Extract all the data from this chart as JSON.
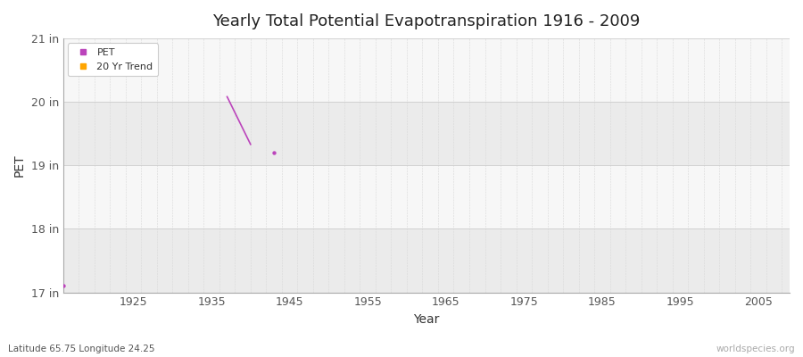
{
  "title": "Yearly Total Potential Evapotranspiration 1916 - 2009",
  "xlabel": "Year",
  "ylabel": "PET",
  "subtitle_lat_lon": "Latitude 65.75 Longitude 24.25",
  "watermark": "worldspecies.org",
  "xlim": [
    1916,
    2009
  ],
  "ylim": [
    17,
    21
  ],
  "yticks": [
    17,
    18,
    19,
    20,
    21
  ],
  "ytick_labels": [
    "17 in",
    "18 in",
    "19 in",
    "20 in",
    "21 in"
  ],
  "xticks": [
    1925,
    1935,
    1945,
    1955,
    1965,
    1975,
    1985,
    1995,
    2005
  ],
  "pet_scatter_x": [
    1916,
    1943
  ],
  "pet_scatter_y": [
    17.1,
    19.2
  ],
  "pet_line_x": [
    1937,
    1940
  ],
  "pet_line_y": [
    20.08,
    19.33
  ],
  "pet_color": "#bb44bb",
  "trend_color": "#ffa500",
  "legend_labels": [
    "PET",
    "20 Yr Trend"
  ],
  "bg_bands": [
    {
      "ymin": 17,
      "ymax": 18,
      "color": "#ebebeb"
    },
    {
      "ymin": 18,
      "ymax": 19,
      "color": "#f7f7f7"
    },
    {
      "ymin": 19,
      "ymax": 20,
      "color": "#ebebeb"
    },
    {
      "ymin": 20,
      "ymax": 21,
      "color": "#f7f7f7"
    }
  ],
  "top_band_color": "#f7f7f7",
  "grid_minor_color": "#d8d8d8",
  "grid_major_color": "#cccccc",
  "title_fontsize": 13,
  "fig_bg_color": "#ffffff",
  "plot_bg_color": "#ffffff"
}
